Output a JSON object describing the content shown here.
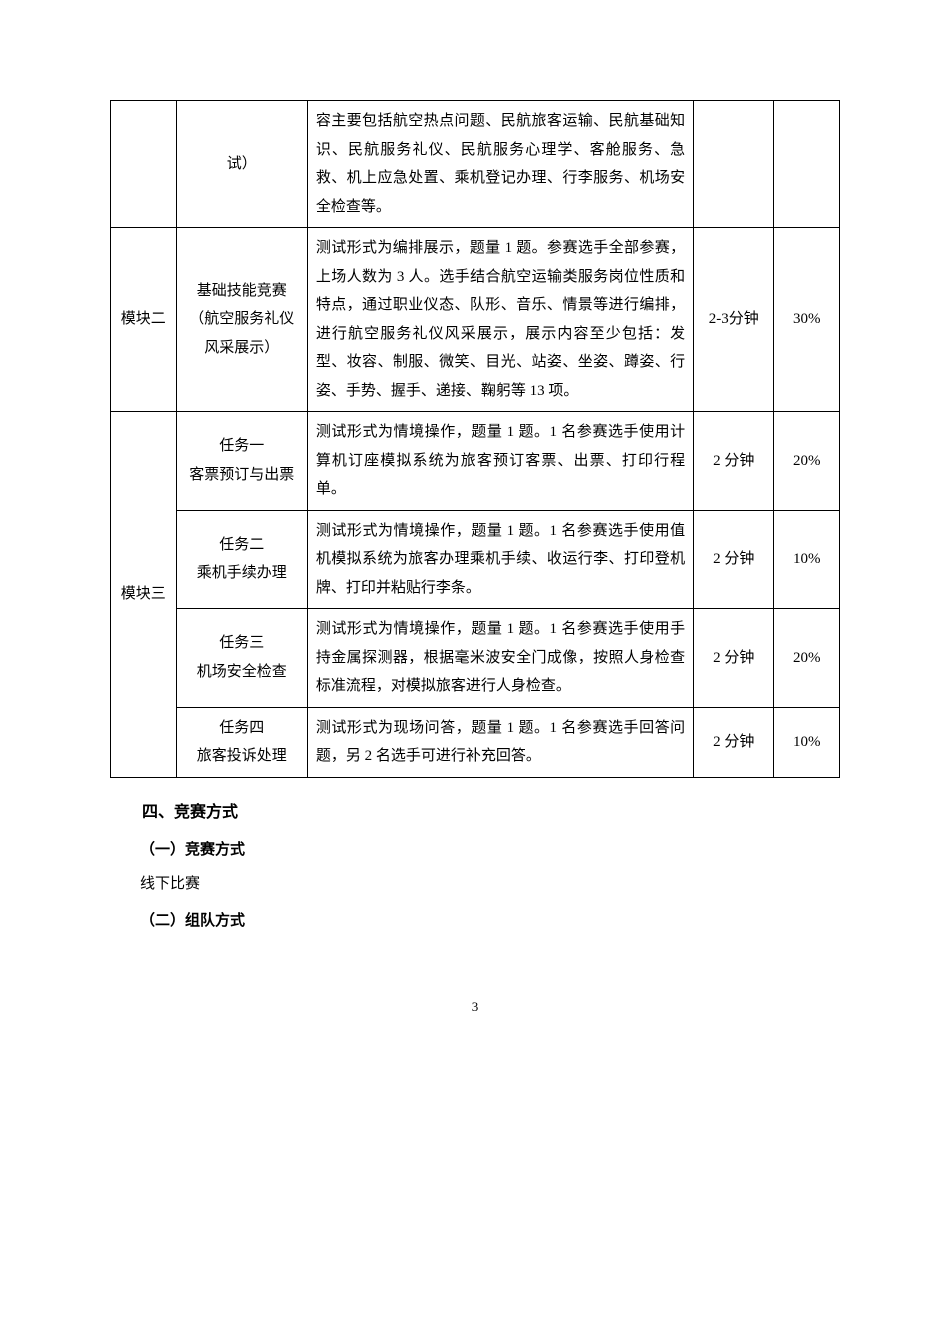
{
  "table": {
    "rows": [
      {
        "module": "",
        "task": "试）",
        "desc": "容主要包括航空热点问题、民航旅客运输、民航基础知识、民航服务礼仪、民航服务心理学、客舱服务、急救、机上应急处置、乘机登记办理、行李服务、机场安全检查等。",
        "time": "",
        "weight": ""
      },
      {
        "module": "模块二",
        "task": "基础技能竞赛（航空服务礼仪风采展示）",
        "desc": "测试形式为编排展示，题量 1 题。参赛选手全部参赛，上场人数为 3 人。选手结合航空运输类服务岗位性质和特点，通过职业仪态、队形、音乐、情景等进行编排，进行航空服务礼仪风采展示，展示内容至少包括：发型、妆容、制服、微笑、目光、站姿、坐姿、蹲姿、行姿、手势、握手、递接、鞠躬等 13 项。",
        "time": "2-3分钟",
        "weight": "30%"
      },
      {
        "module": "模块三",
        "task": "任务一\n客票预订与出票",
        "desc": "测试形式为情境操作，题量 1 题。1 名参赛选手使用计算机订座模拟系统为旅客预订客票、出票、打印行程单。",
        "time": "2 分钟",
        "weight": "20%"
      },
      {
        "module": "",
        "task": "任务二\n乘机手续办理",
        "desc": "测试形式为情境操作，题量 1 题。1 名参赛选手使用值机模拟系统为旅客办理乘机手续、收运行李、打印登机牌、打印并粘贴行李条。",
        "time": "2 分钟",
        "weight": "10%"
      },
      {
        "module": "",
        "task": "任务三\n机场安全检查",
        "desc": "测试形式为情境操作，题量 1 题。1 名参赛选手使用手持金属探测器，根据毫米波安全门成像，按照人身检查标准流程，对模拟旅客进行人身检查。",
        "time": "2 分钟",
        "weight": "20%"
      },
      {
        "module": "",
        "task": "任务四\n旅客投诉处理",
        "desc": "测试形式为现场问答，题量 1 题。1 名参赛选手回答问题，另 2 名选手可进行补充回答。",
        "time": "2 分钟",
        "weight": "10%"
      }
    ]
  },
  "headings": {
    "section4": "四、竞赛方式",
    "sub1": "（一）竞赛方式",
    "body1": "线下比赛",
    "sub2": "（二）组队方式"
  },
  "pageNumber": "3"
}
